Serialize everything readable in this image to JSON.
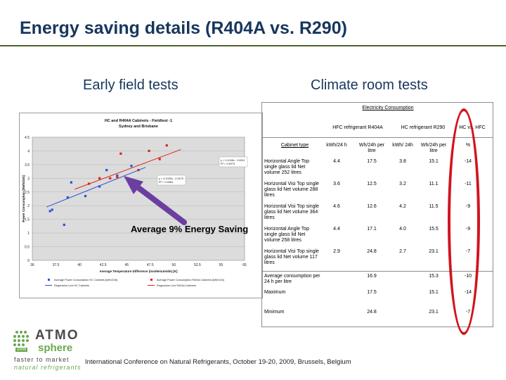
{
  "slide": {
    "title": "Energy saving details (R404A vs. R290)",
    "subtitle_left": "Early field tests",
    "subtitle_right": "Climate room tests",
    "annotation": "Average 9% Energy Saving",
    "footer": "International Conference on Natural Refrigerants, October 19-20, 2009, Brussels, Belgium"
  },
  "logo": {
    "line1": "ATMO",
    "line2": "sphere",
    "year": "2009",
    "tag1": "faster to market",
    "tag2": "natural refrigerants",
    "colors": {
      "green": "#6aa84f",
      "dark": "#4a4a4a"
    }
  },
  "chart_data": {
    "type": "scatter",
    "title": "HC and R404A Cabinets - Fieldtest -1",
    "subtitle": "Sydney and Brisbane",
    "xlabel": "Average Temperature Difference (inside/outside) [K]",
    "ylabel": "Power Consumption [kWh/24h]",
    "xlim": [
      36,
      66
    ],
    "ylim": [
      0,
      4.5
    ],
    "x_ticks": [
      "36",
      "37.5",
      "40",
      "42.5",
      "45",
      "47.5",
      "50",
      "52.5",
      "55",
      "65"
    ],
    "y_ticks": [
      "0",
      "0.5",
      "1",
      "1.5",
      "2",
      "2.5",
      "3",
      "3.5",
      "4",
      "4.5"
    ],
    "series": [
      {
        "name": "Average Power Consumption HC Cabinets [kWh/24h]",
        "color": "#2e4fd6",
        "marker": "square",
        "points": [
          [
            38.5,
            1.8
          ],
          [
            40.5,
            1.3
          ],
          [
            41,
            2.3
          ],
          [
            41.5,
            2.85
          ],
          [
            43.5,
            2.35
          ],
          [
            45.5,
            2.7
          ],
          [
            46.5,
            3.3
          ],
          [
            48,
            3.1
          ],
          [
            50,
            3.45
          ],
          [
            38.8,
            1.85
          ]
        ]
      },
      {
        "name": "Average Power Consumption R404a Cabinets [kWh/24h]",
        "color": "#d9261c",
        "marker": "square",
        "points": [
          [
            44,
            2.8
          ],
          [
            45.5,
            3.0
          ],
          [
            47,
            3.0
          ],
          [
            48,
            3.05
          ],
          [
            49.5,
            3.0
          ],
          [
            51,
            3.3
          ],
          [
            52.5,
            4.0
          ],
          [
            54,
            3.7
          ],
          [
            55,
            4.2
          ],
          [
            48.5,
            3.9
          ]
        ]
      },
      {
        "name": "Regression Line HC Cabinets",
        "color": "#2e4fd6",
        "line": [
          [
            38,
            1.95
          ],
          [
            52,
            3.4
          ]
        ]
      },
      {
        "name": "Regression Line R404a Cabinets",
        "color": "#d9261c",
        "line": [
          [
            42,
            2.6
          ],
          [
            57,
            4.05
          ]
        ]
      }
    ],
    "equations": [
      {
        "text": "y = 0.1046x - 2.6511",
        "r2": "R² = 0.5973"
      },
      {
        "text": "y = 0.1025x - 2.0475",
        "r2": "R² = 0.4664"
      }
    ],
    "legend_position": "bottom"
  },
  "table": {
    "header_top": "Electricity Consumption",
    "group_headers": [
      "HFC refrigerant R404A",
      "HC refrigerant R290",
      "HC vs. HFC"
    ],
    "col_headers": [
      "Cabinet type",
      "kWh/24 h",
      "Wh/24h per litre",
      "kWh/ 24h",
      "Wh/24h per litre",
      "%"
    ],
    "rows": [
      {
        "label": "Horizontal Angle Top single glass lid Net volume 252 litres",
        "v": [
          "4.4",
          "17.5",
          "3.8",
          "15.1",
          "-14"
        ]
      },
      {
        "label": "Horizontal Visi Top single glass lid Net volume 288 litres",
        "v": [
          "3.6",
          "12.5",
          "3.2",
          "11.1",
          "-11"
        ]
      },
      {
        "label": "Horizontal Visi Top single glass lid Net volume 364 litres",
        "v": [
          "4.6",
          "12.6",
          "4.2",
          "11.5",
          "-9"
        ]
      },
      {
        "label": "Horizontal Angle Top single glass lid Net volume 258 litres",
        "v": [
          "4.4",
          "17.1",
          "4.0",
          "15.5",
          "-9"
        ]
      },
      {
        "label": "Horizontal Visi Top single glass lid Net volume 117 litres",
        "v": [
          "2.9",
          "24.8",
          "2.7",
          "23.1",
          "-7"
        ]
      }
    ],
    "summary": [
      {
        "label": "Average consumption per 24 h per litre",
        "v": [
          "16.9",
          "15.3",
          "-10"
        ]
      },
      {
        "label": "Maximum",
        "v": [
          "17.5",
          "15.1",
          "-14"
        ]
      },
      {
        "label": "Minimum",
        "v": [
          "24.8",
          "23.1",
          "-7"
        ]
      }
    ]
  },
  "colors": {
    "title": "#17365d",
    "highlight": "#d2141e",
    "arrow": "#6b3fa0"
  }
}
